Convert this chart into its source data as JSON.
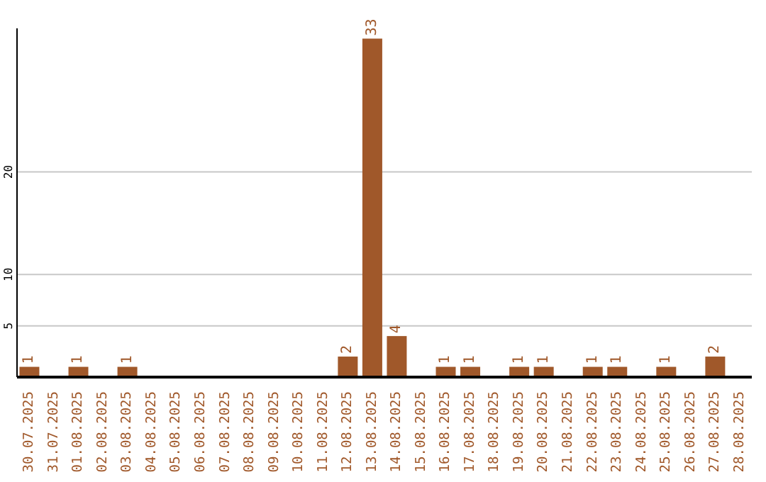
{
  "chart_data": {
    "type": "bar",
    "categories": [
      "30.07.2025",
      "31.07.2025",
      "01.08.2025",
      "02.08.2025",
      "03.08.2025",
      "04.08.2025",
      "05.08.2025",
      "06.08.2025",
      "07.08.2025",
      "08.08.2025",
      "09.08.2025",
      "10.08.2025",
      "11.08.2025",
      "12.08.2025",
      "13.08.2025",
      "14.08.2025",
      "15.08.2025",
      "16.08.2025",
      "17.08.2025",
      "18.08.2025",
      "19.08.2025",
      "20.08.2025",
      "21.08.2025",
      "22.08.2025",
      "23.08.2025",
      "24.08.2025",
      "25.08.2025",
      "26.08.2025",
      "27.08.2025",
      "28.08.2025"
    ],
    "values": [
      1,
      0,
      1,
      0,
      1,
      0,
      0,
      0,
      0,
      0,
      0,
      0,
      0,
      2,
      33,
      4,
      0,
      1,
      1,
      0,
      1,
      1,
      0,
      1,
      1,
      0,
      1,
      0,
      2,
      0
    ],
    "value_labels": [
      "1",
      null,
      "1",
      null,
      "1",
      null,
      null,
      null,
      null,
      null,
      null,
      null,
      null,
      "2",
      "33",
      "4",
      null,
      "1",
      "1",
      null,
      "1",
      "1",
      null,
      "1",
      "1",
      null,
      "1",
      null,
      "2",
      null
    ],
    "color": "#a0582a",
    "ylim": [
      0,
      34
    ],
    "yticks": [
      5,
      10,
      20
    ],
    "grid": "y"
  }
}
